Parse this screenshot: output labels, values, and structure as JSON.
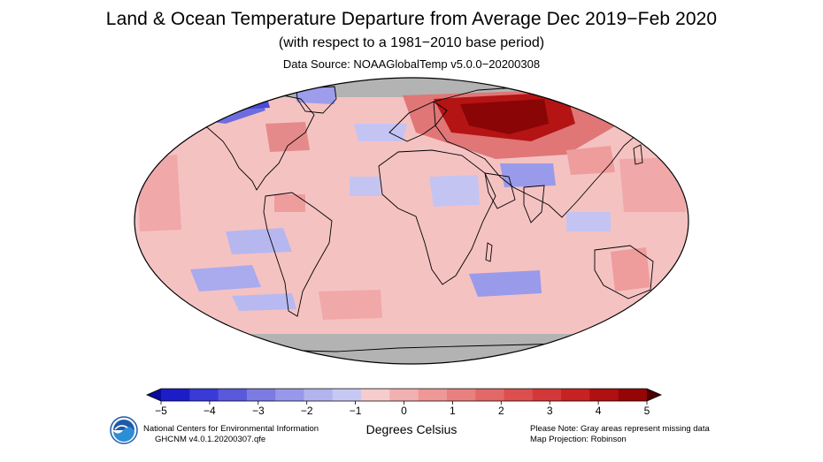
{
  "title": "Land & Ocean Temperature Departure from Average Dec 2019−Feb 2020",
  "subtitle": "(with respect to a 1981−2010 base period)",
  "source": "Data Source: NOAAGlobalTemp v5.0.0−20200308",
  "colorbar": {
    "unit_label": "Degrees Celsius",
    "min": -5,
    "max": 5,
    "ticks": [
      "−5",
      "−4",
      "−3",
      "−2",
      "−1",
      "0",
      "1",
      "2",
      "3",
      "4",
      "5"
    ],
    "colors": [
      "#1d1dc8",
      "#3a3ad6",
      "#5959dc",
      "#7b7be3",
      "#9898ea",
      "#b3b3f0",
      "#c8c8f4",
      "#f6cccc",
      "#f3b0b0",
      "#ee9898",
      "#e98080",
      "#e36868",
      "#dd4f4f",
      "#d33838",
      "#c72222",
      "#b01010",
      "#950505"
    ],
    "low_arrow_color": "#0a0a9c",
    "high_arrow_color": "#4a0000"
  },
  "missing_color": "#b3b3b3",
  "footer": {
    "org": "National Centers for Environmental Information",
    "dataset": "GHCNM v4.0.1.20200307.qfe",
    "note": "Please Note: Gray areas represent missing data",
    "projection": "Map Projection: Robinson"
  },
  "logo": "noaa-logo"
}
